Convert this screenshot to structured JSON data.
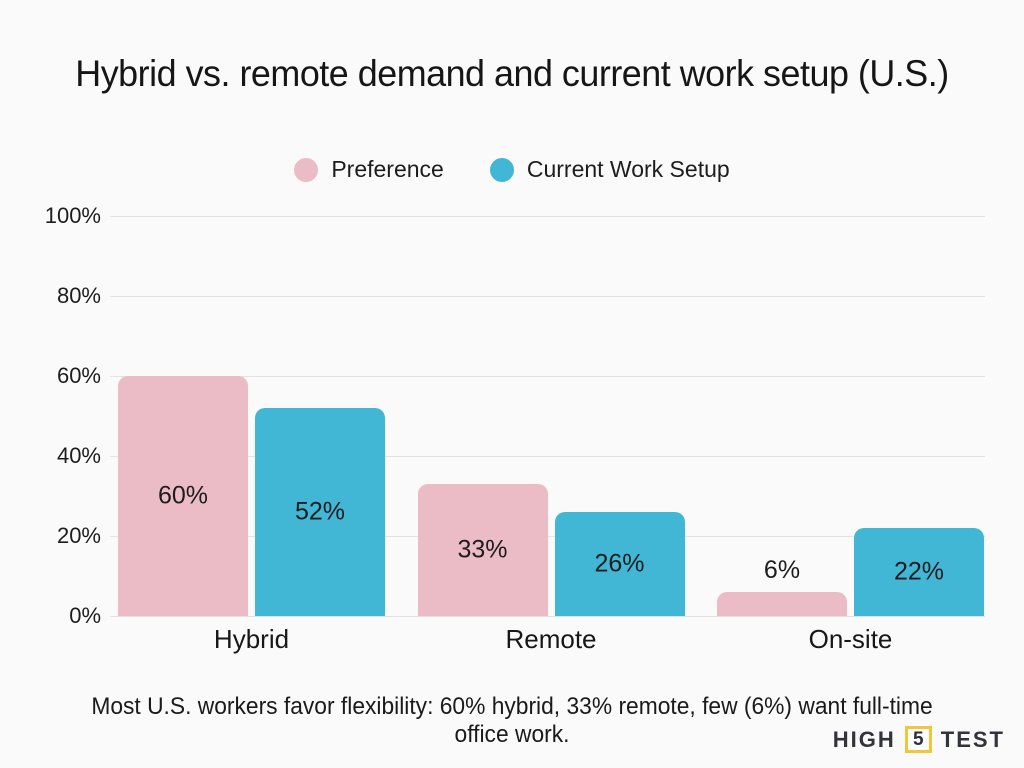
{
  "chart_data": {
    "type": "bar",
    "title": "Hybrid vs. remote demand and current work setup (U.S.)",
    "categories": [
      "Hybrid",
      "Remote",
      "On-site"
    ],
    "series": [
      {
        "name": "Preference",
        "color": "#ecbcc6",
        "values": [
          60,
          33,
          6
        ]
      },
      {
        "name": "Current Work Setup",
        "color": "#41b7d5",
        "values": [
          52,
          26,
          22
        ]
      }
    ],
    "value_suffix": "%",
    "ylim": [
      0,
      100
    ],
    "yticks": [
      "100%",
      "80%",
      "60%",
      "40%",
      "20%",
      "0%"
    ],
    "grid": true,
    "legend_position": "top",
    "bar_label_placement": "inside-center, outside-above when bar too short"
  },
  "caption": "Most U.S. workers favor flexibility: 60% hybrid, 33% remote, few (6%) want full-time office work.",
  "logo": {
    "word1": "HIGH",
    "digit": "5",
    "word2": "TEST"
  },
  "colors": {
    "background": "#fafafa",
    "gridline": "#e3e3e3",
    "text": "#1c1c1c",
    "preference_pink": "#ecbcc6",
    "current_blue": "#41b7d5",
    "logo_yellow": "#f2c63c",
    "logo_dark": "#32333b"
  }
}
